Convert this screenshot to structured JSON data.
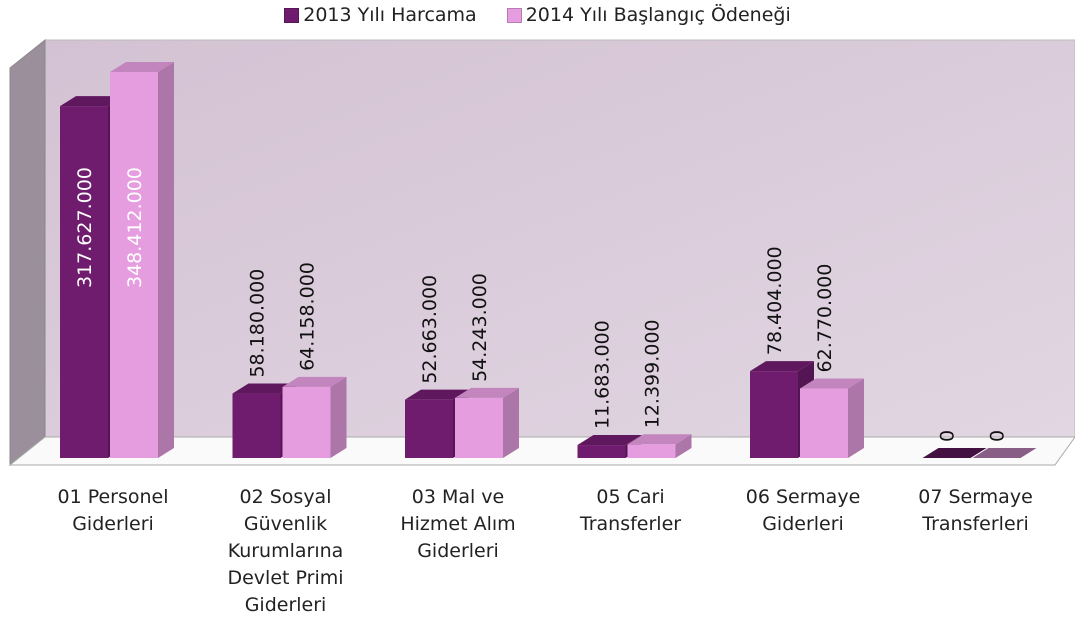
{
  "chart_data": {
    "type": "bar3d",
    "categories": [
      "01 Personel Giderleri",
      "02 Sosyal Güvenlik Kurumlarına Devlet Primi Giderleri",
      "03 Mal ve Hizmet Alım Giderleri",
      "05 Cari Transferler",
      "06 Sermaye Giderleri",
      "07 Sermaye Transferleri"
    ],
    "series": [
      {
        "name": "2013 Yılı Harcama",
        "color": "#701c6e",
        "values": [
          317627000,
          58180000,
          52663000,
          11683000,
          78404000,
          0
        ],
        "value_labels": [
          "317.627.000",
          "58.180.000",
          "52.663.000",
          "11.683.000",
          "78.404.000",
          "0"
        ]
      },
      {
        "name": "2014 Yılı Başlangıç Ödeneği",
        "color": "#e59de0",
        "values": [
          348412000,
          64158000,
          54243000,
          12399000,
          62770000,
          0
        ],
        "value_labels": [
          "348.412.000",
          "64.158.000",
          "54.243.000",
          "12.399.000",
          "62.770.000",
          "0"
        ]
      }
    ],
    "legend": "top"
  }
}
